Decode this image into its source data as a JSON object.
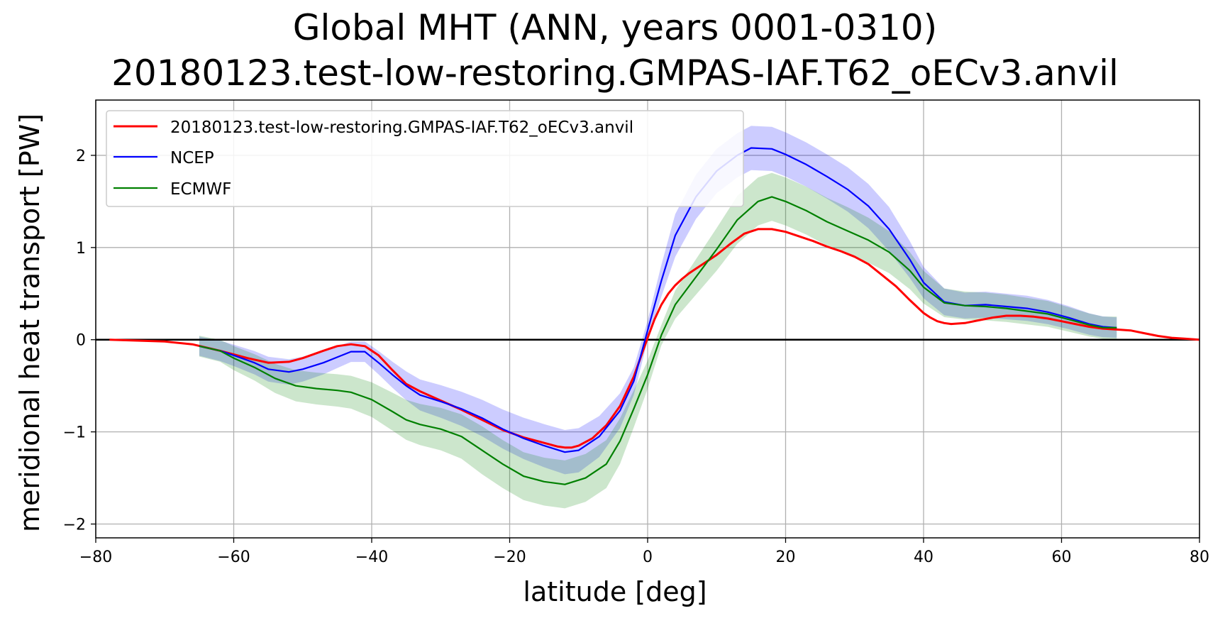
{
  "chart_data": {
    "type": "line",
    "title_lines": [
      "Global MHT (ANN, years 0001-0310)",
      "20180123.test-low-restoring.GMPAS-IAF.T62_oECv3.anvil"
    ],
    "xlabel": "latitude [deg]",
    "ylabel": "meridional heat transport [PW]",
    "xlim": [
      -80,
      80
    ],
    "ylim": [
      -2.15,
      2.6
    ],
    "xticks": [
      -80,
      -60,
      -40,
      -20,
      0,
      20,
      40,
      60,
      80
    ],
    "yticks": [
      -2,
      -1,
      0,
      1,
      2
    ],
    "grid": true,
    "legend_position": "top-left",
    "zero_line_color": "#000000",
    "series": [
      {
        "name": "20180123.test-low-restoring.GMPAS-IAF.T62_oECv3.anvil",
        "color": "#ff0000",
        "x": [
          -78,
          -74,
          -70,
          -66,
          -62,
          -58,
          -55,
          -52,
          -50,
          -47,
          -45,
          -43,
          -41,
          -39,
          -37,
          -35,
          -33,
          -30,
          -27,
          -24,
          -21,
          -18,
          -15,
          -13,
          -12,
          -11,
          -10,
          -8,
          -6,
          -4,
          -2,
          0,
          1,
          2,
          3,
          4,
          5,
          6,
          8,
          10,
          12,
          14,
          16,
          18,
          20,
          22,
          24,
          26,
          28,
          30,
          32,
          34,
          36,
          38,
          40,
          41,
          42,
          43,
          44,
          46,
          48,
          50,
          52,
          54,
          56,
          58,
          60,
          62,
          64,
          66,
          68,
          70,
          72,
          74,
          76,
          78,
          80
        ],
        "y": [
          0.0,
          -0.01,
          -0.02,
          -0.05,
          -0.12,
          -0.2,
          -0.25,
          -0.24,
          -0.2,
          -0.12,
          -0.07,
          -0.05,
          -0.07,
          -0.17,
          -0.33,
          -0.48,
          -0.56,
          -0.66,
          -0.76,
          -0.87,
          -0.98,
          -1.06,
          -1.12,
          -1.16,
          -1.17,
          -1.17,
          -1.15,
          -1.07,
          -0.93,
          -0.72,
          -0.4,
          0.02,
          0.22,
          0.38,
          0.5,
          0.59,
          0.66,
          0.72,
          0.82,
          0.92,
          1.04,
          1.15,
          1.2,
          1.2,
          1.17,
          1.12,
          1.07,
          1.01,
          0.96,
          0.9,
          0.82,
          0.7,
          0.58,
          0.43,
          0.29,
          0.24,
          0.2,
          0.18,
          0.17,
          0.18,
          0.21,
          0.24,
          0.26,
          0.26,
          0.25,
          0.23,
          0.2,
          0.17,
          0.14,
          0.12,
          0.11,
          0.1,
          0.07,
          0.04,
          0.02,
          0.01,
          0.0
        ]
      },
      {
        "name": "NCEP",
        "color": "#0000ff",
        "x": [
          -65,
          -62,
          -60,
          -57,
          -55,
          -52,
          -50,
          -47,
          -45,
          -43,
          -41,
          -39,
          -37,
          -35,
          -33,
          -30,
          -27,
          -24,
          -21,
          -18,
          -15,
          -12,
          -10,
          -7,
          -4,
          -2,
          0,
          2,
          4,
          7,
          10,
          13,
          15,
          18,
          20,
          23,
          26,
          29,
          32,
          35,
          38,
          40,
          43,
          46,
          49,
          52,
          55,
          58,
          61,
          64,
          66,
          68
        ],
        "y": [
          -0.07,
          -0.12,
          -0.17,
          -0.25,
          -0.32,
          -0.35,
          -0.32,
          -0.25,
          -0.19,
          -0.13,
          -0.13,
          -0.25,
          -0.38,
          -0.5,
          -0.6,
          -0.67,
          -0.75,
          -0.85,
          -0.97,
          -1.07,
          -1.15,
          -1.22,
          -1.2,
          -1.05,
          -0.77,
          -0.45,
          0.1,
          0.64,
          1.13,
          1.55,
          1.83,
          2.0,
          2.08,
          2.07,
          2.01,
          1.9,
          1.77,
          1.63,
          1.45,
          1.2,
          0.87,
          0.62,
          0.41,
          0.37,
          0.38,
          0.36,
          0.34,
          0.3,
          0.24,
          0.17,
          0.14,
          0.13
        ]
      },
      {
        "name": "ECMWF",
        "color": "#008000",
        "x": [
          -65,
          -62,
          -60,
          -57,
          -54,
          -51,
          -48,
          -45,
          -43,
          -40,
          -37,
          -35,
          -33,
          -30,
          -27,
          -24,
          -21,
          -18,
          -15,
          -12,
          -9,
          -6,
          -4,
          -2,
          0,
          2,
          4,
          7,
          10,
          13,
          16,
          18,
          20,
          23,
          26,
          29,
          32,
          35,
          38,
          40,
          43,
          46,
          49,
          52,
          55,
          58,
          61,
          64,
          66,
          68
        ],
        "y": [
          -0.07,
          -0.12,
          -0.2,
          -0.3,
          -0.42,
          -0.5,
          -0.53,
          -0.55,
          -0.57,
          -0.65,
          -0.78,
          -0.87,
          -0.92,
          -0.97,
          -1.05,
          -1.2,
          -1.35,
          -1.48,
          -1.54,
          -1.57,
          -1.5,
          -1.35,
          -1.1,
          -0.75,
          -0.38,
          0.05,
          0.38,
          0.68,
          0.98,
          1.3,
          1.5,
          1.55,
          1.5,
          1.4,
          1.28,
          1.18,
          1.08,
          0.95,
          0.75,
          0.57,
          0.4,
          0.37,
          0.36,
          0.34,
          0.31,
          0.28,
          0.22,
          0.16,
          0.13,
          0.13
        ]
      }
    ]
  }
}
